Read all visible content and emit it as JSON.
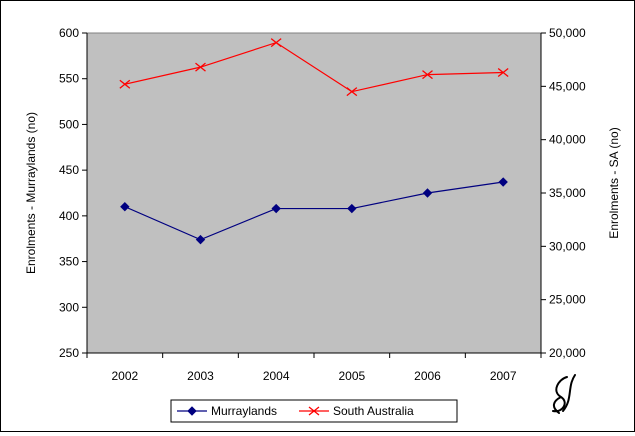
{
  "chart_data": {
    "type": "line",
    "categories": [
      "2002",
      "2003",
      "2004",
      "2005",
      "2006",
      "2007"
    ],
    "ylabel": "Enrolments - Murraylands (no)",
    "y2label": "Enrolments - SA (no)",
    "ylim": [
      250,
      600
    ],
    "y2lim": [
      20000,
      50000
    ],
    "yticks": [
      250,
      300,
      350,
      400,
      450,
      500,
      550,
      600
    ],
    "y2ticks": [
      20000,
      25000,
      30000,
      35000,
      40000,
      45000,
      50000
    ],
    "y2tick_labels": [
      "20,000",
      "25,000",
      "30,000",
      "35,000",
      "40,000",
      "45,000",
      "50,000"
    ],
    "plot_background": "#c0c0c0",
    "legend_position": "bottom",
    "series": [
      {
        "name": "Murraylands",
        "axis": "left",
        "color": "#000080",
        "marker": "diamond",
        "values": [
          410,
          374,
          408,
          408,
          425,
          437
        ]
      },
      {
        "name": "South Australia",
        "axis": "right",
        "color": "#ff0000",
        "marker": "x",
        "values": [
          45200,
          46800,
          49100,
          44500,
          46100,
          46300
        ]
      }
    ]
  }
}
